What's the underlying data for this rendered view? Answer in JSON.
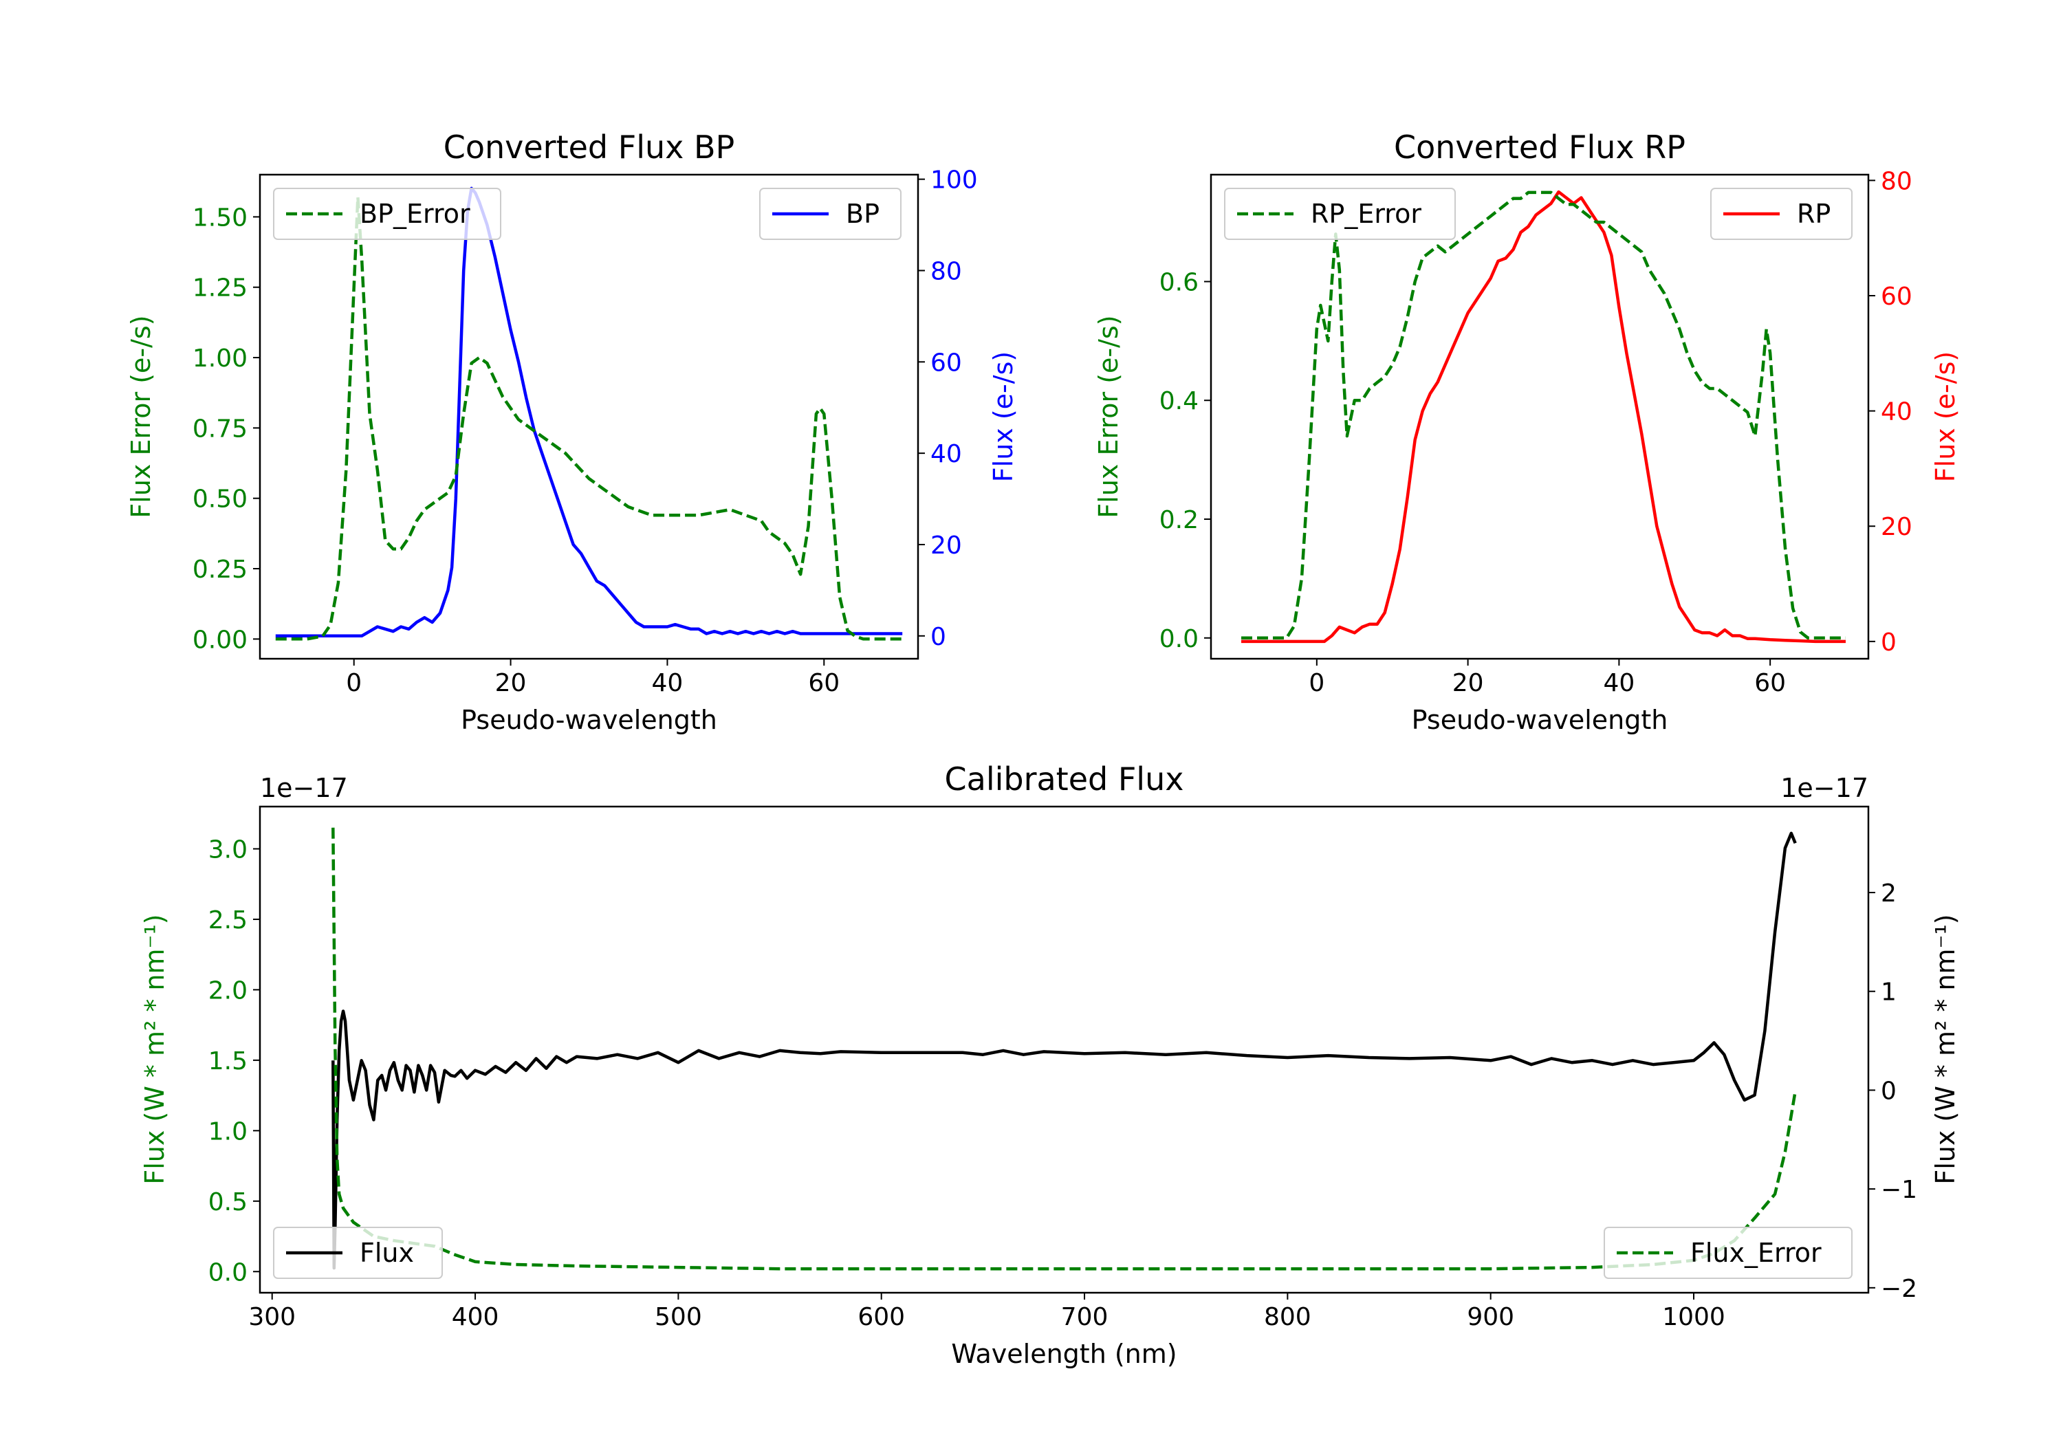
{
  "colors": {
    "bp": "#0000ff",
    "rp": "#ff0000",
    "error": "#008000",
    "flux": "#000000",
    "axis": "#000000"
  },
  "chart_data": [
    {
      "id": "bp",
      "type": "line",
      "title": "Converted Flux BP",
      "xlabel": "Pseudo-wavelength",
      "ylabel_left": "Flux Error (e-/s)",
      "ylabel_right": "Flux (e-/s)",
      "xlim": [
        -12,
        72
      ],
      "ylim_left": [
        -0.07,
        1.65
      ],
      "ylim_right": [
        -5,
        101
      ],
      "xticks": [
        0,
        20,
        40,
        60
      ],
      "xtick_labels": [
        "0",
        "20",
        "40",
        "60"
      ],
      "yticks_left": [
        0,
        0.25,
        0.5,
        0.75,
        1.0,
        1.25,
        1.5
      ],
      "ytick_labels_left": [
        "0.00",
        "0.25",
        "0.50",
        "0.75",
        "1.00",
        "1.25",
        "1.50"
      ],
      "yticks_right": [
        0,
        20,
        40,
        60,
        80,
        100
      ],
      "ytick_labels_right": [
        "0",
        "20",
        "40",
        "60",
        "80",
        "100"
      ],
      "legend_left": "BP_Error",
      "legend_right": "BP",
      "series": [
        {
          "name": "BP_Error",
          "axis": "left",
          "style": "dashed",
          "x": [
            -10,
            -8,
            -6,
            -4,
            -3,
            -2,
            -1,
            0,
            0.5,
            1,
            2,
            3,
            4,
            5,
            6,
            7,
            8,
            9,
            10,
            11,
            12,
            13,
            14,
            15,
            16,
            17,
            18,
            19,
            20,
            21,
            22,
            23,
            24,
            25,
            26,
            27,
            28,
            29,
            30,
            31,
            32,
            33,
            34,
            35,
            36,
            37,
            38,
            39,
            40,
            42,
            44,
            46,
            48,
            50,
            52,
            53,
            54,
            55,
            56,
            57,
            58,
            59,
            59.5,
            60,
            61,
            62,
            63,
            64,
            65,
            66,
            67,
            68,
            69,
            70
          ],
          "y": [
            0,
            0,
            0,
            0.01,
            0.05,
            0.2,
            0.6,
            1.25,
            1.57,
            1.35,
            0.8,
            0.6,
            0.35,
            0.32,
            0.32,
            0.36,
            0.42,
            0.46,
            0.48,
            0.5,
            0.52,
            0.58,
            0.8,
            0.98,
            1.0,
            0.98,
            0.92,
            0.86,
            0.82,
            0.78,
            0.76,
            0.74,
            0.72,
            0.7,
            0.68,
            0.66,
            0.63,
            0.6,
            0.57,
            0.55,
            0.53,
            0.51,
            0.49,
            0.47,
            0.46,
            0.45,
            0.44,
            0.44,
            0.44,
            0.44,
            0.44,
            0.45,
            0.46,
            0.44,
            0.42,
            0.38,
            0.36,
            0.34,
            0.3,
            0.23,
            0.4,
            0.8,
            0.82,
            0.8,
            0.5,
            0.15,
            0.03,
            0.01,
            0,
            0,
            0,
            0,
            0,
            0
          ]
        },
        {
          "name": "BP",
          "axis": "right",
          "style": "solid",
          "x": [
            -10,
            -6,
            -4,
            -2,
            0,
            1,
            2,
            3,
            4,
            5,
            6,
            7,
            8,
            9,
            10,
            11,
            12,
            12.5,
            13,
            13.5,
            14,
            14.5,
            15,
            15.5,
            16,
            17,
            18,
            19,
            20,
            21,
            22,
            23,
            24,
            25,
            26,
            27,
            28,
            29,
            30,
            31,
            32,
            33,
            34,
            35,
            36,
            37,
            38,
            39,
            40,
            41,
            42,
            43,
            44,
            45,
            46,
            47,
            48,
            49,
            50,
            51,
            52,
            53,
            54,
            55,
            56,
            57,
            58,
            60,
            62,
            64,
            66,
            68,
            70
          ],
          "y": [
            0,
            0,
            0,
            0,
            0,
            0,
            1,
            2,
            1.5,
            1,
            2,
            1.5,
            3,
            4,
            3,
            5,
            10,
            15,
            30,
            55,
            80,
            93,
            98,
            97,
            95,
            90,
            83,
            75,
            67,
            60,
            52,
            45,
            40,
            35,
            30,
            25,
            20,
            18,
            15,
            12,
            11,
            9,
            7,
            5,
            3,
            2,
            2,
            2,
            2,
            2.5,
            2,
            1.5,
            1.5,
            0.5,
            1,
            0.5,
            1,
            0.5,
            1,
            0.5,
            1,
            0.5,
            1,
            0.5,
            1,
            0.5,
            0.5,
            0.5,
            0.5,
            0.5,
            0.5,
            0.5,
            0.5
          ]
        }
      ]
    },
    {
      "id": "rp",
      "type": "line",
      "title": "Converted Flux RP",
      "xlabel": "Pseudo-wavelength",
      "ylabel_left": "Flux Error (e-/s)",
      "ylabel_right": "Flux (e-/s)",
      "xlim": [
        -14,
        73
      ],
      "ylim_left": [
        -0.035,
        0.78
      ],
      "ylim_right": [
        -3,
        81
      ],
      "xticks": [
        0,
        20,
        40,
        60
      ],
      "xtick_labels": [
        "0",
        "20",
        "40",
        "60"
      ],
      "yticks_left": [
        0,
        0.2,
        0.4,
        0.6
      ],
      "ytick_labels_left": [
        "0.0",
        "0.2",
        "0.4",
        "0.6"
      ],
      "yticks_right": [
        0,
        20,
        40,
        60,
        80
      ],
      "ytick_labels_right": [
        "0",
        "20",
        "40",
        "60",
        "80"
      ],
      "legend_left": "RP_Error",
      "legend_right": "RP",
      "series": [
        {
          "name": "RP_Error",
          "axis": "left",
          "style": "dashed",
          "x": [
            -10,
            -6,
            -4,
            -3,
            -2,
            -1,
            0,
            0.5,
            1,
            1.5,
            2,
            2.5,
            3,
            3.5,
            4,
            5,
            6,
            7,
            8,
            9,
            10,
            11,
            12,
            13,
            14,
            15,
            16,
            17,
            18,
            19,
            20,
            21,
            22,
            23,
            24,
            25,
            26,
            27,
            28,
            29,
            30,
            31,
            32,
            33,
            34,
            35,
            36,
            37,
            38,
            39,
            40,
            41,
            42,
            43,
            44,
            45,
            46,
            47,
            48,
            49,
            50,
            51,
            52,
            53,
            54,
            55,
            56,
            57,
            58,
            59,
            59.5,
            60,
            61,
            62,
            63,
            64,
            65,
            66,
            68,
            70
          ],
          "y": [
            0,
            0,
            0,
            0.02,
            0.1,
            0.3,
            0.52,
            0.56,
            0.53,
            0.5,
            0.6,
            0.68,
            0.62,
            0.45,
            0.34,
            0.4,
            0.4,
            0.42,
            0.43,
            0.44,
            0.46,
            0.49,
            0.54,
            0.6,
            0.64,
            0.65,
            0.66,
            0.65,
            0.66,
            0.67,
            0.68,
            0.69,
            0.7,
            0.71,
            0.72,
            0.73,
            0.74,
            0.74,
            0.75,
            0.75,
            0.75,
            0.75,
            0.74,
            0.73,
            0.73,
            0.72,
            0.71,
            0.7,
            0.7,
            0.69,
            0.68,
            0.67,
            0.66,
            0.65,
            0.62,
            0.6,
            0.58,
            0.55,
            0.52,
            0.48,
            0.45,
            0.43,
            0.42,
            0.42,
            0.41,
            0.4,
            0.39,
            0.38,
            0.34,
            0.45,
            0.52,
            0.48,
            0.3,
            0.15,
            0.05,
            0.01,
            0,
            0,
            0,
            0
          ]
        },
        {
          "name": "RP",
          "axis": "right",
          "style": "solid",
          "x": [
            -10,
            -6,
            -4,
            -2,
            0,
            1,
            2,
            3,
            4,
            5,
            6,
            7,
            8,
            9,
            10,
            11,
            12,
            13,
            14,
            15,
            16,
            17,
            18,
            19,
            20,
            21,
            22,
            23,
            24,
            25,
            26,
            27,
            28,
            29,
            30,
            31,
            32,
            33,
            34,
            35,
            36,
            37,
            38,
            39,
            40,
            41,
            42,
            43,
            44,
            45,
            46,
            47,
            48,
            49,
            50,
            51,
            52,
            53,
            54,
            55,
            56,
            57,
            58,
            60,
            62,
            64,
            66,
            68,
            70
          ],
          "y": [
            0,
            0,
            0,
            0,
            0,
            0,
            1,
            2.5,
            2,
            1.5,
            2.5,
            3,
            3,
            5,
            10,
            16,
            25,
            35,
            40,
            43,
            45,
            48,
            51,
            54,
            57,
            59,
            61,
            63,
            66,
            66.5,
            68,
            71,
            72,
            74,
            75,
            76,
            78,
            77,
            76,
            77,
            75,
            73,
            71,
            67,
            58,
            50,
            43,
            36,
            28,
            20,
            15,
            10,
            6,
            4,
            2,
            1.5,
            1.5,
            1,
            2,
            1,
            1,
            0.5,
            0.5,
            0.3,
            0.2,
            0.1,
            0,
            0,
            0
          ]
        }
      ]
    },
    {
      "id": "cal",
      "type": "line",
      "title": "Calibrated Flux",
      "xlabel": "Wavelength (nm)",
      "ylabel_left": "Flux (W * m² * nm⁻¹)",
      "ylabel_right": "Flux (W * m² * nm⁻¹)",
      "offset_left": "1e−17",
      "offset_right": "1e−17",
      "xlim": [
        294,
        1086
      ],
      "ylim_left": [
        -0.15,
        3.3
      ],
      "ylim_right": [
        -2.05,
        2.87
      ],
      "xticks": [
        300,
        400,
        500,
        600,
        700,
        800,
        900,
        1000
      ],
      "xtick_labels": [
        "300",
        "400",
        "500",
        "600",
        "700",
        "800",
        "900",
        "1000"
      ],
      "yticks_left": [
        0,
        0.5,
        1.0,
        1.5,
        2.0,
        2.5,
        3.0
      ],
      "ytick_labels_left": [
        "0.0",
        "0.5",
        "1.0",
        "1.5",
        "2.0",
        "2.5",
        "3.0"
      ],
      "yticks_right": [
        -2,
        -1,
        0,
        1,
        2
      ],
      "ytick_labels_right": [
        "−2",
        "−1",
        "0",
        "1",
        "2"
      ],
      "legend_left": "Flux",
      "legend_right": "Flux_Error",
      "series": [
        {
          "name": "Flux_Error",
          "axis": "left",
          "style": "dashed",
          "x": [
            330,
            331,
            332,
            333,
            335,
            340,
            350,
            360,
            370,
            380,
            390,
            400,
            420,
            450,
            500,
            550,
            600,
            650,
            700,
            750,
            800,
            850,
            900,
            950,
            980,
            1000,
            1010,
            1020,
            1030,
            1040,
            1045,
            1050
          ],
          "y": [
            3.15,
            1.6,
            0.8,
            0.55,
            0.45,
            0.35,
            0.25,
            0.22,
            0.2,
            0.18,
            0.12,
            0.07,
            0.05,
            0.04,
            0.03,
            0.02,
            0.02,
            0.02,
            0.02,
            0.02,
            0.02,
            0.02,
            0.02,
            0.03,
            0.05,
            0.08,
            0.13,
            0.22,
            0.38,
            0.55,
            0.85,
            1.28
          ]
        },
        {
          "name": "Flux",
          "axis": "right",
          "style": "solid",
          "x": [
            330,
            330.5,
            331,
            332,
            333,
            334,
            335,
            336,
            337,
            338,
            340,
            342,
            344,
            346,
            348,
            350,
            352,
            354,
            356,
            358,
            360,
            362,
            364,
            366,
            368,
            370,
            372,
            374,
            376,
            378,
            380,
            382,
            385,
            388,
            390,
            393,
            396,
            400,
            405,
            410,
            415,
            420,
            425,
            430,
            435,
            440,
            445,
            450,
            460,
            470,
            480,
            490,
            500,
            510,
            520,
            530,
            540,
            550,
            560,
            570,
            580,
            600,
            620,
            640,
            650,
            660,
            670,
            680,
            700,
            720,
            740,
            760,
            780,
            800,
            820,
            840,
            860,
            880,
            900,
            910,
            920,
            930,
            940,
            950,
            960,
            970,
            980,
            990,
            1000,
            1005,
            1010,
            1015,
            1020,
            1025,
            1030,
            1035,
            1040,
            1045,
            1048,
            1050
          ],
          "y": [
            0.3,
            -1.8,
            -1.4,
            -0.3,
            0.4,
            0.7,
            0.8,
            0.7,
            0.4,
            0.1,
            -0.1,
            0.1,
            0.3,
            0.2,
            -0.15,
            -0.3,
            0.1,
            0.15,
            0.0,
            0.2,
            0.28,
            0.1,
            0.0,
            0.25,
            0.2,
            -0.02,
            0.25,
            0.15,
            0.0,
            0.25,
            0.18,
            -0.12,
            0.2,
            0.15,
            0.14,
            0.2,
            0.12,
            0.2,
            0.16,
            0.24,
            0.18,
            0.28,
            0.2,
            0.32,
            0.22,
            0.34,
            0.28,
            0.34,
            0.32,
            0.36,
            0.32,
            0.38,
            0.28,
            0.4,
            0.32,
            0.38,
            0.34,
            0.4,
            0.38,
            0.37,
            0.39,
            0.38,
            0.38,
            0.38,
            0.36,
            0.4,
            0.36,
            0.39,
            0.37,
            0.38,
            0.36,
            0.38,
            0.35,
            0.33,
            0.35,
            0.33,
            0.32,
            0.33,
            0.3,
            0.34,
            0.26,
            0.32,
            0.28,
            0.3,
            0.26,
            0.3,
            0.26,
            0.28,
            0.3,
            0.38,
            0.48,
            0.36,
            0.1,
            -0.1,
            -0.05,
            0.6,
            1.6,
            2.45,
            2.6,
            2.5
          ]
        }
      ]
    }
  ]
}
